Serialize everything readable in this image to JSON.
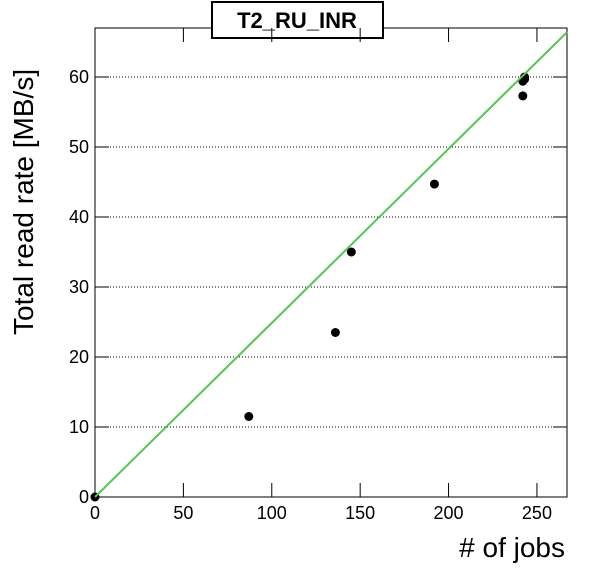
{
  "chart_data": {
    "type": "scatter",
    "title": "T2_RU_INR",
    "x_label": "# of jobs",
    "y_label": "Total read rate [MB/s]",
    "xlim": [
      0,
      267
    ],
    "ylim": [
      0,
      67
    ],
    "xticks": [
      0,
      50,
      100,
      150,
      200,
      250
    ],
    "yticks": [
      0,
      10,
      20,
      30,
      40,
      50,
      60
    ],
    "grid": true,
    "series": [
      {
        "type": "scatter",
        "color": "#000000",
        "x": [
          0,
          87,
          136,
          145,
          192,
          242,
          242,
          243,
          243
        ],
        "values": [
          0,
          11.5,
          23.5,
          35,
          44.7,
          57.3,
          59.4,
          59.7,
          60
        ]
      },
      {
        "type": "line",
        "color": "#55c455",
        "x": [
          0,
          267
        ],
        "values": [
          0,
          66.4
        ]
      }
    ]
  }
}
